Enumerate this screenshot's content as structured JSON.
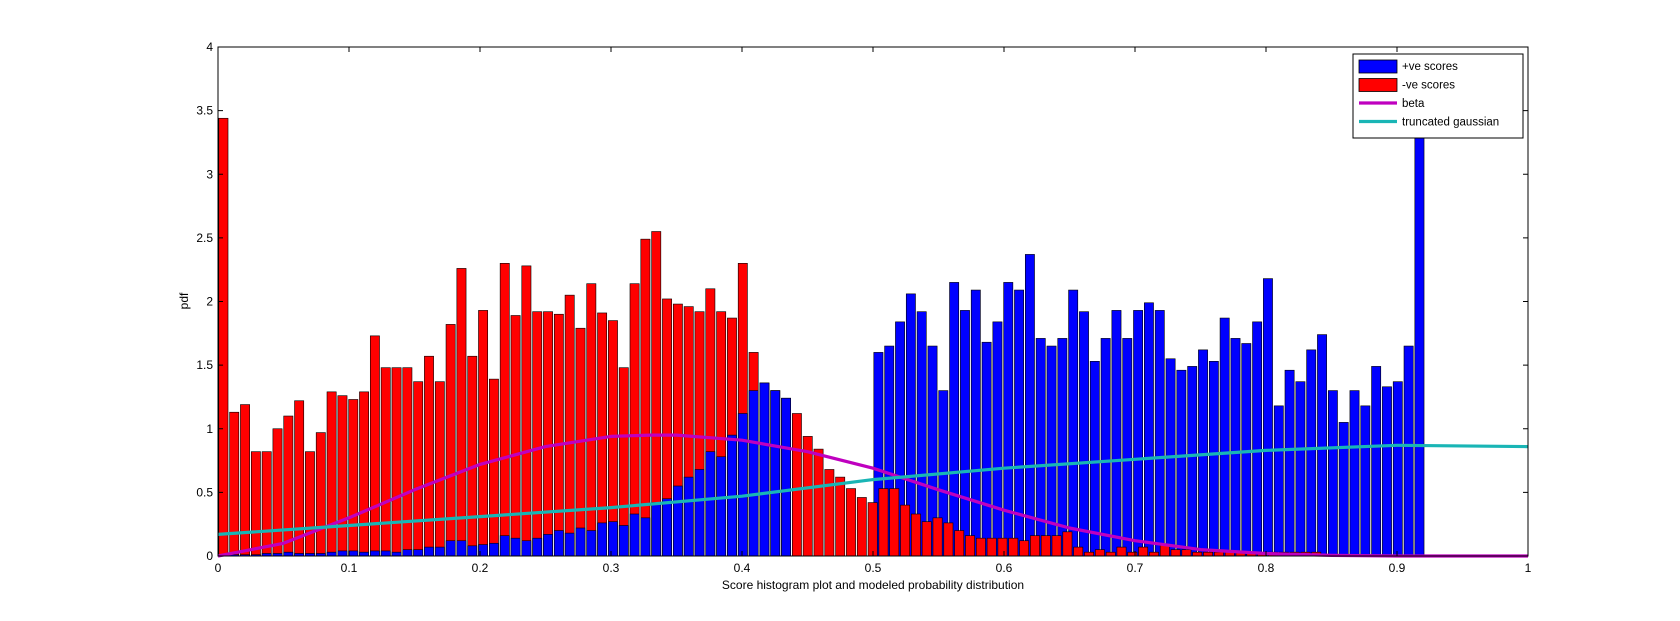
{
  "chart_data": {
    "type": "bar",
    "title": "",
    "xlabel": "Score histogram plot and modeled probability distribution",
    "ylabel": "pdf",
    "xlim": [
      0,
      1
    ],
    "ylim": [
      0,
      4
    ],
    "grid": false,
    "legend_position": "top-right",
    "x_ticks": [
      "0",
      "0.1",
      "0.2",
      "0.3",
      "0.4",
      "0.5",
      "0.6",
      "0.7",
      "0.8",
      "0.9",
      "1"
    ],
    "y_ticks": [
      "0",
      "0.5",
      "1",
      "1.5",
      "2",
      "2.5",
      "3",
      "3.5",
      "4"
    ],
    "colors": {
      "positive": "#0000ff",
      "negative": "#ff0000",
      "beta": "#bf00bf",
      "gaussian": "#19b5b5"
    },
    "series": [
      {
        "name": "+ve scores",
        "kind": "bar",
        "bin_start": 0.5,
        "bin_width": 0.00826,
        "values": [
          1.6,
          1.65,
          1.84,
          2.06,
          1.92,
          1.65,
          1.3,
          2.15,
          1.93,
          2.09,
          1.68,
          1.84,
          2.15,
          2.09,
          2.37,
          1.71,
          1.65,
          1.71,
          2.09,
          1.92,
          1.53,
          1.71,
          1.93,
          1.71,
          1.93,
          1.99,
          1.93,
          1.55,
          1.46,
          1.49,
          1.62,
          1.53,
          1.87,
          1.71,
          1.67,
          1.84,
          2.18,
          1.18,
          1.46,
          1.37,
          1.62,
          1.74,
          1.3,
          1.05,
          1.3,
          1.18,
          1.49,
          1.33,
          1.37,
          1.65,
          3.86
        ]
      },
      {
        "name": "-ve scores",
        "kind": "bar",
        "bin_start": 0.0,
        "bin_width": 0.00826,
        "values": [
          3.44,
          1.13,
          1.19,
          0.82,
          0.82,
          1.0,
          1.1,
          1.22,
          0.82,
          0.97,
          1.29,
          1.26,
          1.23,
          1.29,
          1.73,
          1.48,
          1.48,
          1.48,
          1.37,
          1.57,
          1.37,
          1.82,
          2.26,
          1.57,
          1.93,
          1.39,
          2.3,
          1.89,
          2.28,
          1.92,
          1.92,
          1.9,
          2.05,
          1.79,
          2.14,
          1.91,
          1.85,
          1.48,
          2.14,
          2.49,
          2.55,
          2.02,
          1.98,
          1.96,
          1.92,
          2.1,
          1.92,
          1.87,
          2.3,
          1.6,
          1.36,
          1.3,
          1.24,
          1.12,
          0.94,
          0.84,
          0.68,
          0.62,
          0.53,
          0.46,
          0.42,
          0.53,
          0.53,
          0.4,
          0.33,
          0.27,
          0.3,
          0.26,
          0.2,
          0.16,
          0.14,
          0.14,
          0.14,
          0.14,
          0.12,
          0.16,
          0.16,
          0.16,
          0.19,
          0.07,
          0.03,
          0.05,
          0.03,
          0.07,
          0.03,
          0.07,
          0.03,
          0.09,
          0.05,
          0.05,
          0.03,
          0.03,
          0.03,
          0.03,
          0.03,
          0.03,
          0.03,
          0.03,
          0.03,
          0.03,
          0.03,
          0.03
        ]
      },
      {
        "name": "+ve scores (overlap)",
        "kind": "bar-overlap",
        "bin_start": 0.0,
        "bin_width": 0.00826,
        "values": [
          0.01,
          0.01,
          0.01,
          0.01,
          0.02,
          0.02,
          0.03,
          0.02,
          0.02,
          0.02,
          0.03,
          0.04,
          0.04,
          0.03,
          0.04,
          0.04,
          0.03,
          0.05,
          0.05,
          0.07,
          0.07,
          0.12,
          0.12,
          0.08,
          0.09,
          0.1,
          0.16,
          0.14,
          0.12,
          0.14,
          0.17,
          0.2,
          0.18,
          0.22,
          0.2,
          0.26,
          0.27,
          0.24,
          0.33,
          0.3,
          0.42,
          0.45,
          0.55,
          0.62,
          0.68,
          0.82,
          0.78,
          0.95,
          1.12,
          1.3,
          1.36,
          1.3,
          1.24
        ]
      },
      {
        "name": "beta",
        "kind": "line",
        "x": [
          0.0,
          0.05,
          0.1,
          0.15,
          0.2,
          0.25,
          0.3,
          0.33,
          0.35,
          0.4,
          0.45,
          0.5,
          0.55,
          0.6,
          0.65,
          0.7,
          0.75,
          0.8,
          0.85,
          0.9,
          1.0
        ],
        "y": [
          0.0,
          0.1,
          0.3,
          0.52,
          0.72,
          0.86,
          0.94,
          0.95,
          0.95,
          0.91,
          0.82,
          0.69,
          0.52,
          0.36,
          0.22,
          0.12,
          0.05,
          0.02,
          0.005,
          0.0,
          0.0
        ]
      },
      {
        "name": "truncated gaussian",
        "kind": "line",
        "x": [
          0.0,
          0.1,
          0.2,
          0.3,
          0.4,
          0.5,
          0.6,
          0.7,
          0.8,
          0.9,
          1.0
        ],
        "y": [
          0.17,
          0.24,
          0.31,
          0.38,
          0.47,
          0.6,
          0.69,
          0.76,
          0.83,
          0.87,
          0.86
        ]
      }
    ],
    "legend": [
      {
        "label": "+ve scores",
        "kind": "patch",
        "color": "#0000ff"
      },
      {
        "label": "-ve scores",
        "kind": "patch",
        "color": "#ff0000"
      },
      {
        "label": "beta",
        "kind": "line",
        "color": "#bf00bf"
      },
      {
        "label": "truncated gaussian",
        "kind": "line",
        "color": "#19b5b5"
      }
    ]
  }
}
